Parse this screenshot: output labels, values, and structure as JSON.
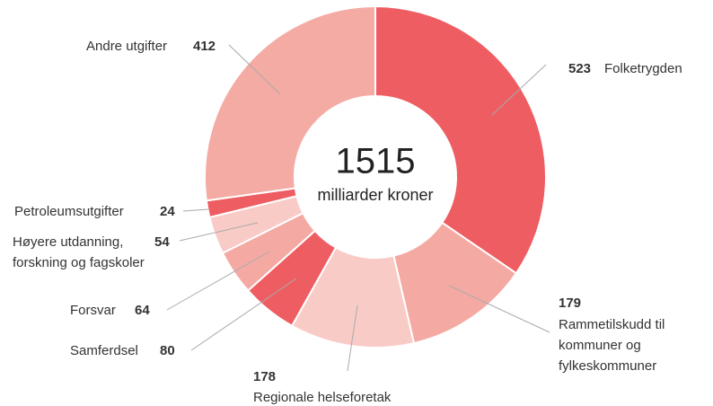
{
  "chart_data": {
    "type": "donut",
    "center_value": 1515,
    "center_label": "milliarder kroner",
    "categories": [
      [
        "Folketrygden"
      ],
      [
        "Rammetilskudd til",
        "kommuner og",
        "fylkeskommuner"
      ],
      [
        "Regionale helseforetak"
      ],
      [
        "Samferdsel"
      ],
      [
        "Forsvar"
      ],
      [
        "Høyere utdanning,",
        "forskning og fagskoler"
      ],
      [
        "Petroleumsutgifter"
      ],
      [
        "Andre utgifter"
      ]
    ],
    "values": [
      523,
      179,
      178,
      80,
      64,
      54,
      24,
      412
    ],
    "colors": [
      "#ee5d62",
      "#f4aaa2",
      "#f9cbc6",
      "#ee5d62",
      "#f4aaa2",
      "#f9cbc6",
      "#ee5d62",
      "#f4aba3"
    ]
  }
}
